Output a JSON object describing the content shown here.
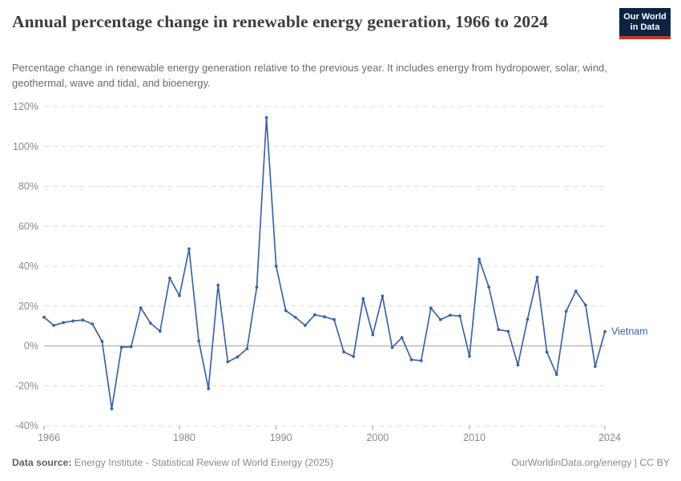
{
  "header": {
    "title": "Annual percentage change in renewable energy generation, 1966 to 2024",
    "subtitle": "Percentage change in renewable energy generation relative to the previous year. It includes energy from hydropower, solar, wind, geothermal, wave and tidal, and bioenergy.",
    "logo": {
      "line1": "Our World",
      "line2": "in Data"
    }
  },
  "chart_data": {
    "type": "line",
    "title": "Annual percentage change in renewable energy generation, 1966 to 2024",
    "entity_label": "Vietnam",
    "x": [
      1966,
      1967,
      1968,
      1969,
      1970,
      1971,
      1972,
      1973,
      1974,
      1975,
      1976,
      1977,
      1978,
      1979,
      1980,
      1981,
      1982,
      1983,
      1984,
      1985,
      1986,
      1987,
      1988,
      1989,
      1990,
      1991,
      1992,
      1993,
      1994,
      1995,
      1996,
      1997,
      1998,
      1999,
      2000,
      2001,
      2002,
      2003,
      2004,
      2005,
      2006,
      2007,
      2008,
      2009,
      2010,
      2011,
      2012,
      2013,
      2014,
      2015,
      2016,
      2017,
      2018,
      2019,
      2020,
      2021,
      2022,
      2023,
      2024
    ],
    "series": [
      {
        "name": "Vietnam",
        "values": [
          14.4,
          10.3,
          11.7,
          12.5,
          13.0,
          11.0,
          2.3,
          -31.5,
          -0.7,
          -0.4,
          19.1,
          11.4,
          7.4,
          34.0,
          25.2,
          48.7,
          2.5,
          -21.4,
          30.5,
          -8.0,
          -5.5,
          -1.4,
          29.5,
          114.5,
          40.0,
          17.7,
          14.3,
          10.3,
          15.6,
          14.6,
          13.2,
          -3.0,
          -5.3,
          23.7,
          5.6,
          25.0,
          -0.8,
          4.2,
          -6.9,
          -7.4,
          19.0,
          13.2,
          15.4,
          15.0,
          -5.2,
          43.5,
          29.5,
          8.2,
          7.3,
          -9.6,
          13.3,
          34.4,
          -3.1,
          -14.3,
          17.4,
          27.5,
          20.5,
          -10.3,
          7.2
        ]
      }
    ],
    "ylim": [
      -40,
      120
    ],
    "yticks": [
      120,
      100,
      80,
      60,
      40,
      20,
      0,
      -20,
      -40
    ],
    "ytick_suffix": "%",
    "xticks": [
      1966,
      1980,
      1990,
      2000,
      2010,
      2024
    ],
    "grid": "horizontal-dashed",
    "zero_line": true,
    "legend_position": "right-of-line",
    "line_color": "#3e64a5",
    "grid_color": "#dcdcdc",
    "zero_line_color": "#a3a3a3",
    "tick_color": "#8b8b8b"
  },
  "footer": {
    "source_label": "Data source:",
    "source_text": " Energy Institute - Statistical Review of World Energy (2025)",
    "rights": "OurWorldinData.org/energy | CC BY"
  }
}
